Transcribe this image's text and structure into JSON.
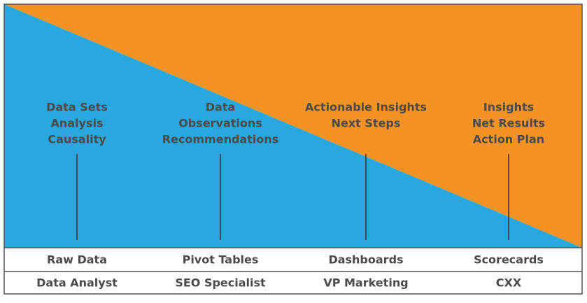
{
  "columns": [
    {
      "lines": [
        "Data Sets",
        "Analysis",
        "Causality"
      ],
      "tool": "Raw Data",
      "role": "Data Analyst"
    },
    {
      "lines": [
        "Data",
        "Observations",
        "Recommendations"
      ],
      "tool": "Pivot Tables",
      "role": "SEO Specialist"
    },
    {
      "lines": [
        "Actionable Insights",
        "Next Steps"
      ],
      "tool": "Dashboards",
      "role": "VP Marketing"
    },
    {
      "lines": [
        "Insights",
        "Net Results",
        "Action Plan"
      ],
      "tool": "Scorecards",
      "role": "CXX"
    }
  ]
}
